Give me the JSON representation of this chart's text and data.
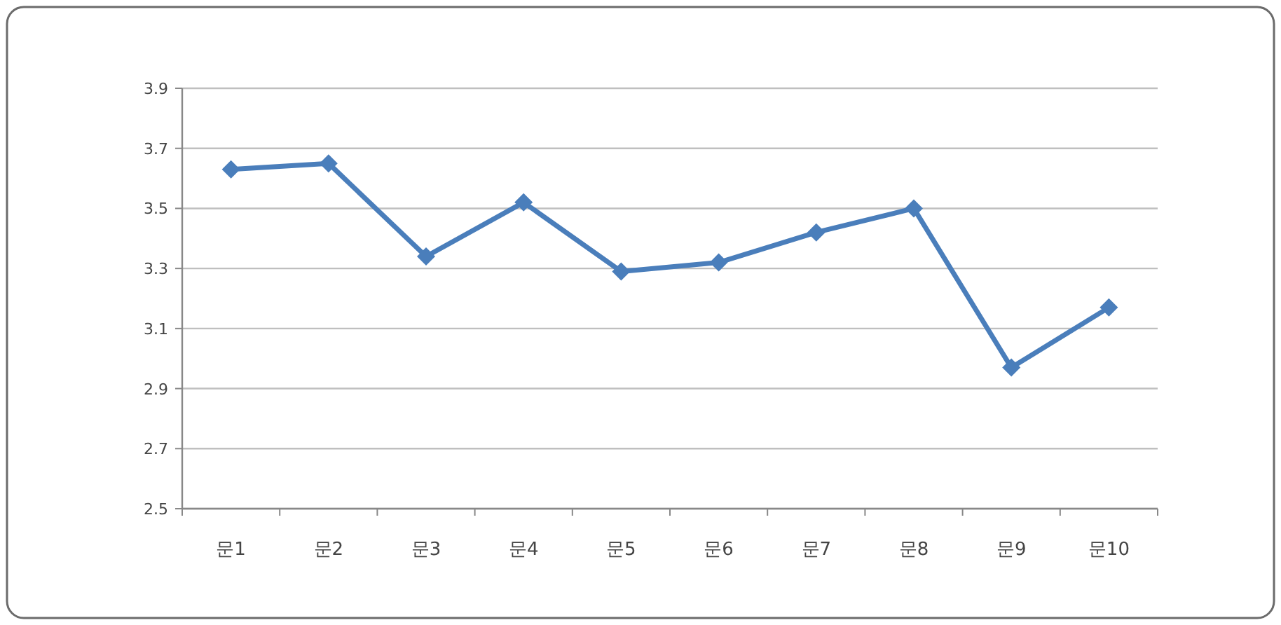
{
  "chart_data": {
    "type": "line",
    "categories": [
      "문1",
      "문2",
      "문3",
      "문4",
      "문5",
      "문6",
      "문7",
      "문8",
      "문9",
      "문10"
    ],
    "series": [
      {
        "color": "#4a7ebb",
        "values": [
          3.63,
          3.65,
          3.34,
          3.52,
          3.29,
          3.32,
          3.42,
          3.5,
          2.97,
          3.17
        ]
      }
    ],
    "ylim": [
      2.5,
      3.9
    ],
    "yticks": [
      2.5,
      2.7,
      2.9,
      3.1,
      3.3,
      3.5,
      3.7,
      3.9
    ],
    "grid": "y",
    "marker": "diamond",
    "line_style": "solid"
  }
}
